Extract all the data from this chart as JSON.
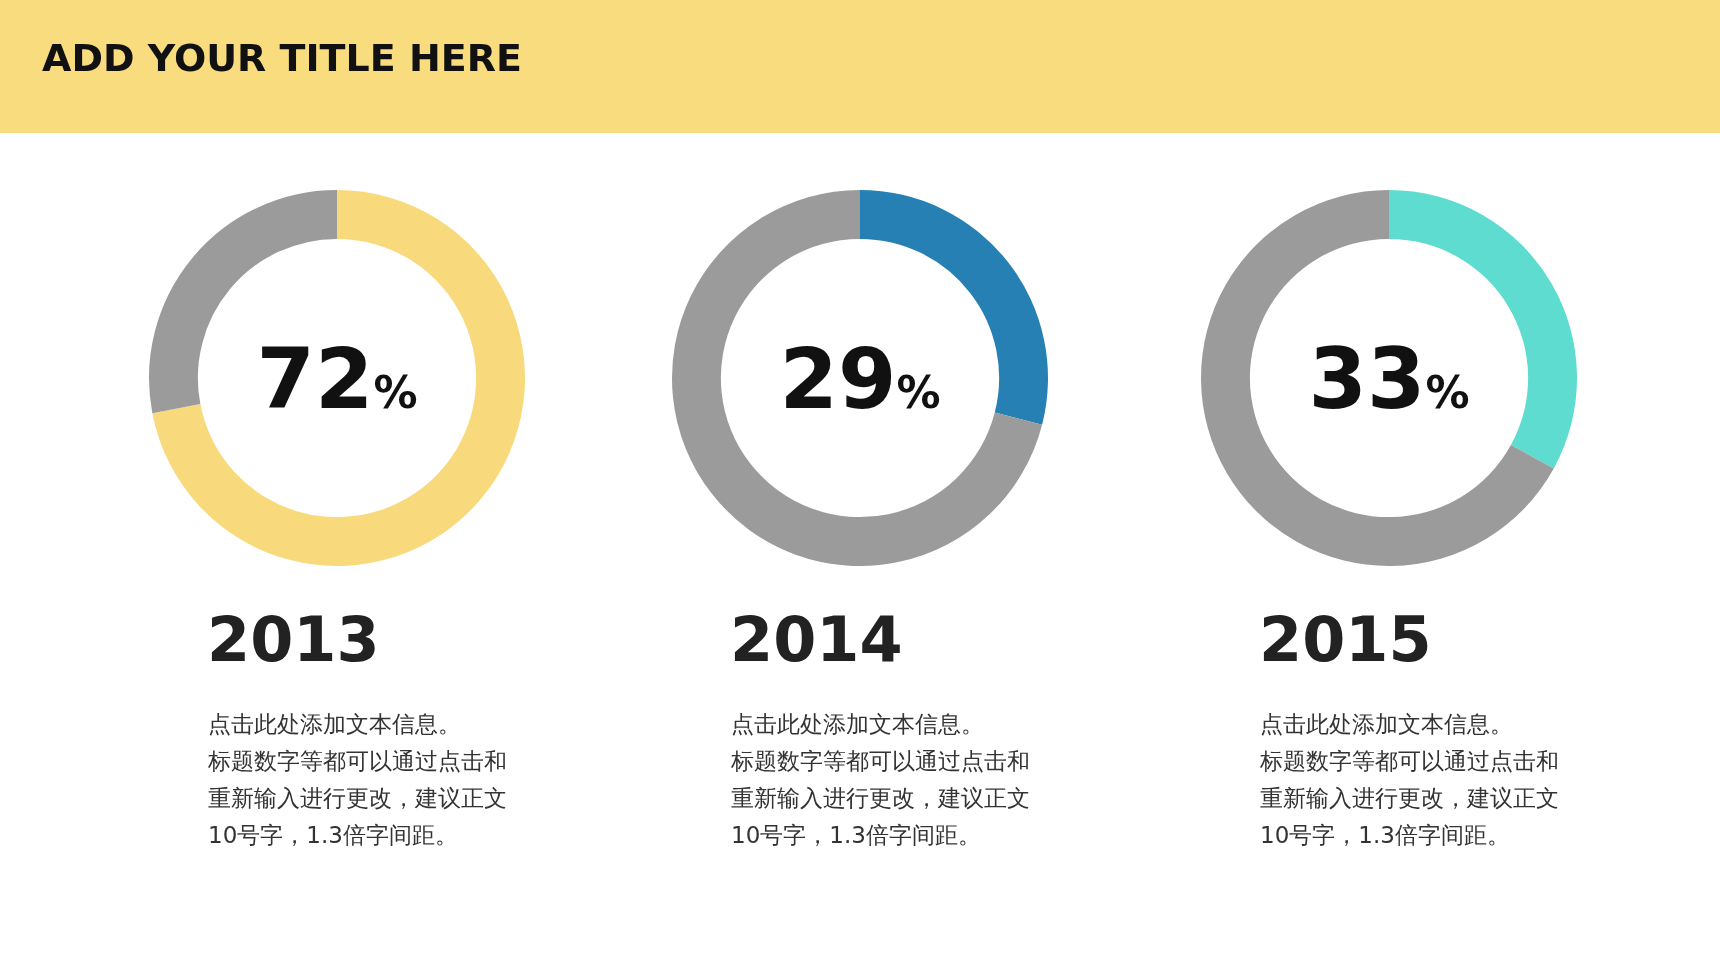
{
  "chart_data": [
    {
      "type": "other",
      "title": "ADD YOUR TITLE HERE"
    },
    {
      "type": "donut",
      "title": "2013",
      "categories": [
        null,
        null
      ],
      "values": [
        72,
        28
      ],
      "colors": [
        "#f8da7c",
        "#9b9b9b"
      ],
      "legend": false,
      "annotations": [
        {
          "text": "72%"
        },
        "点击此处添加文本信息。",
        "标题数字等都可以通过点击和",
        "重新输入进行更改，建议正文",
        "10号字，1.3倍字间距。"
      ]
    },
    {
      "type": "donut",
      "title": "2014",
      "categories": [
        null,
        null
      ],
      "values": [
        29,
        71
      ],
      "colors": [
        "#2680b4",
        "#9b9b9b"
      ],
      "legend": false,
      "annotations": [
        {
          "text": "29%"
        },
        "点击此处添加文本信息。",
        "标题数字等都可以通过点击和",
        "重新输入进行更改，建议正文",
        "10号字，1.3倍字间距。"
      ]
    },
    {
      "type": "donut",
      "title": "2015",
      "categories": [
        null,
        null
      ],
      "values": [
        33,
        67
      ],
      "colors": [
        "#5ddccf",
        "#9b9b9b"
      ],
      "legend": false,
      "annotations": [
        {
          "text": "33%"
        },
        "点击此处添加文本信息。",
        "标题数字等都可以通过点击和",
        "重新输入进行更改，建议正文",
        "10号字，1.3倍字间距。"
      ]
    }
  ]
}
